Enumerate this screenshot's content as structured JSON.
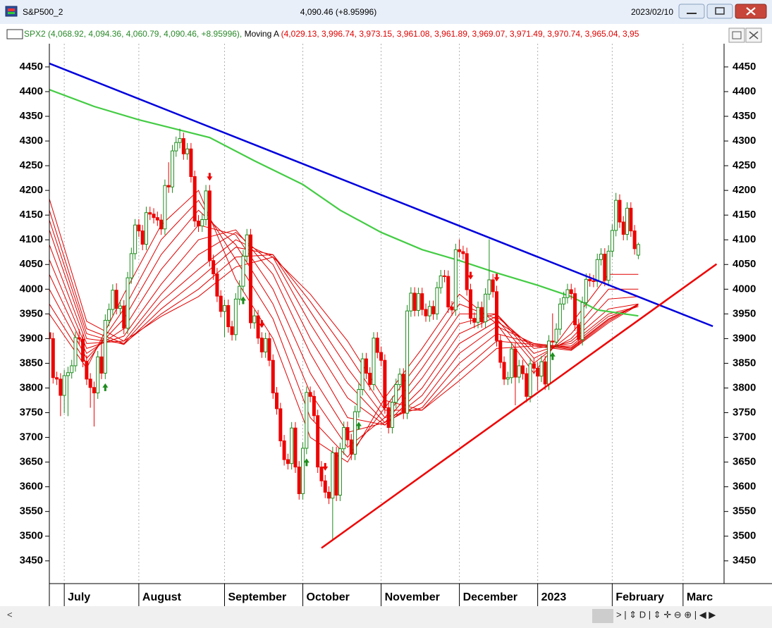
{
  "window": {
    "title": "S&P500_2",
    "quote": "4,090.46 (+8.95996)",
    "date": "2023/02/10",
    "legend_symbol": "SPX2 (4,068.92, 4,094.36, 4,060.79, 4,090.46, +8.95996),",
    "legend_ma_name": "Moving A",
    "legend_ma_values": "(4,029.13, 3,996.74, 3,973.15, 3,961.08, 3,961.89, 3,969.07, 3,971.49, 3,970.74, 3,965.04, 3,95",
    "scroll_left": "<",
    "toolbar": "> | ⇕ D | ⇕ ✛ ⊖ ⊕ | ◀ ▶"
  },
  "chart_data": {
    "type": "candlestick",
    "up_color": "#1e8c1e",
    "down_color": "#ee0000",
    "open": [
      3912,
      3900,
      3821,
      3818,
      3785,
      3825,
      3831,
      3845,
      3902,
      3899,
      3854,
      3818,
      3801,
      3790,
      3863,
      3830,
      3937,
      3959,
      3998,
      3961,
      3966,
      3921,
      4023,
      4072,
      4130,
      4118,
      4091,
      4155,
      4152,
      4145,
      4140,
      4122,
      4210,
      4207,
      4280,
      4297,
      4305,
      4274,
      4284,
      4228,
      4138,
      4128,
      4141,
      4199,
      4058,
      4031,
      3986,
      3955,
      3967,
      3924,
      3908,
      3980,
      4006,
      4067,
      4110,
      3932,
      3946,
      3901,
      3873,
      3900,
      3856,
      3790,
      3758,
      3693,
      3655,
      3647,
      3719,
      3640,
      3586,
      3678,
      3791,
      3783,
      3744,
      3640,
      3612,
      3589,
      3577,
      3669,
      3583,
      3677,
      3720,
      3695,
      3666,
      3752,
      3797,
      3859,
      3830,
      3807,
      3901,
      3872,
      3856,
      3760,
      3720,
      3771,
      3807,
      3828,
      3749,
      3956,
      3992,
      3957,
      3991,
      3959,
      3946,
      3965,
      3950,
      4003,
      4027,
      4026,
      3964,
      3958,
      4080,
      4076,
      4072,
      3999,
      3941,
      3933,
      3963,
      3934,
      3990,
      4019,
      3995,
      3896,
      3852,
      3818,
      3821,
      3879,
      3822,
      3845,
      3829,
      3783,
      3849,
      3840,
      3824,
      3853,
      3808,
      3895,
      3893,
      3919,
      3970,
      3983,
      3999,
      3991,
      3928,
      3898,
      3973,
      4020,
      4017,
      4016,
      4060,
      4071,
      4018,
      4077,
      4119,
      4180,
      4136,
      4111,
      4164,
      4118,
      4068.92
    ],
    "high": [
      3924,
      3912,
      3833,
      3830,
      3837,
      3843,
      3857,
      3914,
      3919,
      3911,
      3866,
      3830,
      3813,
      3875,
      3900,
      3949,
      3971,
      4010,
      4012,
      3978,
      3978,
      4035,
      4084,
      4142,
      4142,
      4130,
      4167,
      4167,
      4164,
      4157,
      4152,
      4222,
      4257,
      4292,
      4309,
      4325,
      4317,
      4296,
      4296,
      4240,
      4150,
      4153,
      4211,
      4211,
      4070,
      4043,
      3998,
      3979,
      3979,
      3936,
      3992,
      4018,
      4079,
      4122,
      4122,
      3958,
      3958,
      3913,
      3912,
      3912,
      3868,
      3802,
      3770,
      3705,
      3667,
      3731,
      3731,
      3652,
      3690,
      3803,
      3803,
      3795,
      3756,
      3652,
      3624,
      3601,
      3681,
      3681,
      3689,
      3732,
      3732,
      3707,
      3764,
      3809,
      3871,
      3871,
      3842,
      3913,
      3913,
      3884,
      3868,
      3772,
      3783,
      3819,
      3840,
      3840,
      3968,
      4004,
      4004,
      4003,
      4003,
      3971,
      3977,
      3977,
      4015,
      4039,
      4039,
      4038,
      3976,
      4092,
      4101,
      4088,
      4084,
      4011,
      3953,
      3975,
      3975,
      4002,
      4101,
      4031,
      4007,
      3908,
      3864,
      3833,
      3891,
      3891,
      3857,
      3857,
      3841,
      3861,
      3861,
      3852,
      3865,
      3865,
      3907,
      3951,
      3931,
      3982,
      3995,
      4011,
      4011,
      4003,
      3940,
      3985,
      4032,
      4032,
      4029,
      4072,
      4083,
      4083,
      4089,
      4131,
      4195,
      4192,
      4148,
      4176,
      4176,
      4130,
      4094.36
    ],
    "low": [
      3888,
      3809,
      3806,
      3743,
      3749,
      3743,
      3819,
      3833,
      3887,
      3842,
      3806,
      3760,
      3722,
      3778,
      3818,
      3818,
      3925,
      3947,
      3949,
      3949,
      3909,
      3909,
      4011,
      4060,
      4106,
      4079,
      4079,
      4140,
      4133,
      4128,
      4110,
      4110,
      4195,
      4195,
      4268,
      4285,
      4262,
      4262,
      4216,
      4126,
      4116,
      4116,
      4129,
      4046,
      4019,
      3974,
      3943,
      3903,
      3912,
      3896,
      3896,
      3968,
      3994,
      4055,
      3920,
      3920,
      3889,
      3861,
      3861,
      3844,
      3778,
      3746,
      3681,
      3643,
      3635,
      3635,
      3628,
      3574,
      3574,
      3666,
      3771,
      3732,
      3628,
      3600,
      3577,
      3565,
      3491,
      3571,
      3571,
      3665,
      3683,
      3654,
      3654,
      3740,
      3785,
      3818,
      3795,
      3795,
      3860,
      3844,
      3748,
      3708,
      3708,
      3759,
      3795,
      3737,
      3737,
      3944,
      3945,
      3945,
      3947,
      3934,
      3934,
      3938,
      3938,
      3991,
      4014,
      3952,
      3946,
      3946,
      4064,
      4060,
      3987,
      3929,
      3921,
      3921,
      3922,
      3922,
      3978,
      3983,
      3884,
      3840,
      3806,
      3806,
      3809,
      3765,
      3810,
      3817,
      3771,
      3771,
      3828,
      3794,
      3812,
      3796,
      3796,
      3881,
      3881,
      3907,
      3958,
      3971,
      3979,
      3916,
      3886,
      3886,
      3961,
      4005,
      4004,
      4004,
      4048,
      4006,
      4006,
      4065,
      4107,
      4124,
      4099,
      4099,
      4106,
      4070,
      4060.79
    ],
    "close": [
      3900,
      3821,
      3818,
      3785,
      3825,
      3831,
      3845,
      3902,
      3899,
      3854,
      3818,
      3801,
      3790,
      3863,
      3830,
      3937,
      3959,
      3998,
      3961,
      3966,
      3921,
      4023,
      4072,
      4130,
      4118,
      4091,
      4155,
      4152,
      4145,
      4140,
      4122,
      4210,
      4207,
      4280,
      4297,
      4305,
      4274,
      4284,
      4228,
      4138,
      4128,
      4141,
      4199,
      4058,
      4031,
      3986,
      3955,
      3967,
      3924,
      3908,
      3980,
      4006,
      4067,
      4110,
      3932,
      3946,
      3901,
      3873,
      3900,
      3856,
      3790,
      3758,
      3693,
      3655,
      3647,
      3719,
      3640,
      3586,
      3678,
      3791,
      3783,
      3744,
      3640,
      3612,
      3589,
      3577,
      3669,
      3583,
      3677,
      3720,
      3695,
      3666,
      3752,
      3797,
      3859,
      3830,
      3807,
      3901,
      3872,
      3856,
      3760,
      3720,
      3771,
      3807,
      3828,
      3749,
      3956,
      3992,
      3957,
      3991,
      3959,
      3946,
      3965,
      3950,
      4003,
      4027,
      4026,
      3964,
      3958,
      4080,
      4076,
      4072,
      3999,
      3941,
      3933,
      3963,
      3934,
      3990,
      4019,
      3995,
      3896,
      3852,
      3818,
      3821,
      3879,
      3822,
      3845,
      3829,
      3783,
      3849,
      3840,
      3824,
      3853,
      3808,
      3895,
      3893,
      3919,
      3970,
      3983,
      3999,
      3991,
      3928,
      3898,
      3973,
      4020,
      4017,
      4016,
      4060,
      4071,
      4018,
      4077,
      4119,
      4180,
      4136,
      4111,
      4164,
      4118,
      4082,
      4090.46
    ],
    "xlim": [
      0,
      181
    ],
    "xticks": [
      {
        "value": 4,
        "label": "July"
      },
      {
        "value": 24,
        "label": "August"
      },
      {
        "value": 47,
        "label": "September"
      },
      {
        "value": 68,
        "label": "October"
      },
      {
        "value": 89,
        "label": "November"
      },
      {
        "value": 110,
        "label": "December"
      },
      {
        "value": 131,
        "label": "2023"
      },
      {
        "value": 151,
        "label": "February"
      },
      {
        "value": 170,
        "label": "Marc"
      }
    ],
    "ylim": [
      3404,
      4497
    ],
    "yticks": [
      3450,
      3500,
      3550,
      3600,
      3650,
      3700,
      3750,
      3800,
      3850,
      3900,
      3950,
      4000,
      4050,
      4100,
      4150,
      4200,
      4250,
      4300,
      4350,
      4400,
      4450
    ],
    "grid": "x",
    "ma_x": [
      0,
      10,
      20,
      30,
      40,
      50,
      60,
      70,
      80,
      90,
      100,
      110,
      120,
      130,
      140,
      150,
      158
    ],
    "ma_lines": [
      {
        "color": "#e00000",
        "values": [
          3950,
          3840,
          3990,
          4130,
          4200,
          4020,
          3900,
          3700,
          3650,
          3780,
          3880,
          3990,
          3930,
          3830,
          3930,
          4030,
          4030
        ]
      },
      {
        "color": "#e00000",
        "values": [
          3970,
          3850,
          3960,
          4100,
          4180,
          4060,
          3940,
          3740,
          3660,
          3760,
          3860,
          3970,
          3940,
          3850,
          3910,
          4000,
          4000
        ]
      },
      {
        "color": "#e00000",
        "values": [
          4000,
          3860,
          3940,
          4070,
          4160,
          4090,
          3970,
          3790,
          3680,
          3740,
          3840,
          3950,
          3950,
          3860,
          3900,
          3980,
          3985
        ]
      },
      {
        "color": "#e00000",
        "values": [
          4030,
          3870,
          3920,
          4040,
          4130,
          4110,
          4000,
          3830,
          3710,
          3730,
          3820,
          3930,
          3950,
          3870,
          3895,
          3960,
          3970
        ]
      },
      {
        "color": "#e00000",
        "values": [
          4060,
          3880,
          3905,
          4010,
          4100,
          4120,
          4030,
          3870,
          3740,
          3725,
          3800,
          3910,
          3945,
          3880,
          3890,
          3950,
          3965
        ]
      },
      {
        "color": "#e00000",
        "values": [
          4090,
          3890,
          3895,
          3990,
          4070,
          4115,
          4050,
          3900,
          3780,
          3725,
          3785,
          3890,
          3935,
          3885,
          3885,
          3945,
          3965
        ]
      },
      {
        "color": "#e00000",
        "values": [
          4120,
          3900,
          3890,
          3975,
          4040,
          4100,
          4065,
          3930,
          3810,
          3730,
          3770,
          3870,
          3925,
          3890,
          3882,
          3940,
          3968
        ]
      },
      {
        "color": "#e00000",
        "values": [
          4140,
          3910,
          3888,
          3960,
          4020,
          4085,
          4070,
          3955,
          3840,
          3740,
          3760,
          3850,
          3910,
          3890,
          3880,
          3938,
          3970
        ]
      },
      {
        "color": "#e00000",
        "values": [
          4160,
          3920,
          3890,
          3950,
          4000,
          4065,
          4070,
          3975,
          3870,
          3755,
          3755,
          3830,
          3895,
          3888,
          3878,
          3935,
          3970
        ]
      },
      {
        "color": "#e00000",
        "values": [
          4183,
          3935,
          3895,
          3945,
          3985,
          4045,
          4065,
          3990,
          3895,
          3775,
          3755,
          3815,
          3880,
          3885,
          3876,
          3932,
          3968
        ]
      }
    ],
    "long_ma": {
      "color": "#44cc44",
      "x": [
        0,
        12,
        24,
        34,
        43,
        55,
        68,
        78,
        89,
        100,
        110,
        120,
        131,
        140,
        147,
        158
      ],
      "values": [
        4404,
        4370,
        4343,
        4324,
        4307,
        4260,
        4212,
        4160,
        4115,
        4080,
        4058,
        4033,
        4008,
        3985,
        3958,
        3946
      ]
    },
    "trendlines": [
      {
        "color": "#0000dd",
        "x": [
          0,
          178
        ],
        "values": [
          4457,
          3925
        ]
      },
      {
        "color": "#ee0000",
        "x": [
          73,
          179
        ],
        "values": [
          3476,
          4051
        ]
      }
    ],
    "signals": {
      "up": [
        15,
        52,
        69,
        83,
        135
      ],
      "down": [
        43,
        57,
        74,
        113,
        120
      ],
      "up_color": "#1e8c1e",
      "down_color": "#ee0000"
    }
  }
}
